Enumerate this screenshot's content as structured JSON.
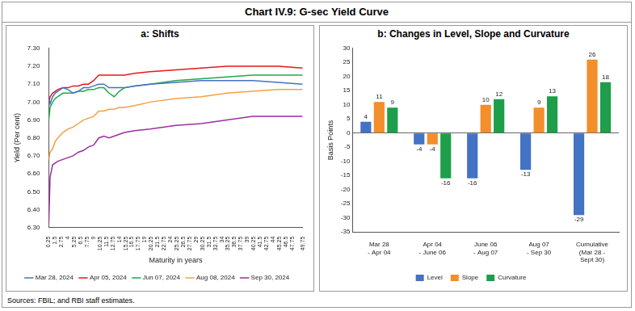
{
  "title": "Chart IV.9: G-sec Yield Curve",
  "source": "Sources: FBIL; and RBI staff estimates.",
  "chart_data": [
    {
      "type": "line",
      "title": "a: Shifts",
      "x_label": "Maturity in years",
      "y_label": "Yield (Per cent)",
      "x": [
        0.25,
        0.5,
        1,
        1.5,
        2,
        3,
        4,
        5,
        6,
        7,
        8,
        9,
        10,
        11,
        12,
        13,
        14,
        15,
        17,
        20,
        25,
        30,
        35,
        40,
        45,
        49.75
      ],
      "series": [
        {
          "name": "Mar 28, 2024",
          "color": "#4472c4",
          "values": [
            7.02,
            6.99,
            7.03,
            7.05,
            7.06,
            7.08,
            7.07,
            7.05,
            7.06,
            7.08,
            7.08,
            7.09,
            7.1,
            7.1,
            7.08,
            7.08,
            7.08,
            7.08,
            7.09,
            7.1,
            7.11,
            7.12,
            7.12,
            7.12,
            7.11,
            7.1
          ]
        },
        {
          "name": "Apr 05, 2024",
          "color": "#e31a1c",
          "values": [
            7.0,
            7.03,
            7.05,
            7.06,
            7.07,
            7.08,
            7.08,
            7.09,
            7.09,
            7.1,
            7.1,
            7.12,
            7.15,
            7.15,
            7.15,
            7.15,
            7.15,
            7.15,
            7.16,
            7.17,
            7.18,
            7.19,
            7.2,
            7.2,
            7.2,
            7.19
          ]
        },
        {
          "name": "Jun 07, 2024",
          "color": "#22a84a",
          "values": [
            6.9,
            6.97,
            7.0,
            7.02,
            7.03,
            7.05,
            7.05,
            7.05,
            7.06,
            7.06,
            7.07,
            7.07,
            7.08,
            7.08,
            7.05,
            7.03,
            7.06,
            7.08,
            7.09,
            7.1,
            7.12,
            7.13,
            7.14,
            7.15,
            7.15,
            7.15
          ]
        },
        {
          "name": "Aug 08, 2024",
          "color": "#f4a040",
          "values": [
            6.68,
            6.72,
            6.74,
            6.78,
            6.8,
            6.83,
            6.85,
            6.86,
            6.88,
            6.9,
            6.91,
            6.92,
            6.95,
            6.95,
            6.96,
            6.96,
            6.97,
            6.97,
            6.98,
            7.0,
            7.02,
            7.03,
            7.05,
            7.06,
            7.07,
            7.07
          ]
        },
        {
          "name": "Sep 30, 2024",
          "color": "#9b2f9f",
          "values": [
            6.32,
            6.58,
            6.65,
            6.66,
            6.67,
            6.68,
            6.69,
            6.7,
            6.72,
            6.73,
            6.75,
            6.76,
            6.8,
            6.81,
            6.8,
            6.81,
            6.82,
            6.83,
            6.84,
            6.85,
            6.87,
            6.88,
            6.9,
            6.92,
            6.92,
            6.92
          ]
        }
      ],
      "xlim": [
        0.25,
        49.75
      ],
      "xticks": [
        0.25,
        1.5,
        2.75,
        4,
        5.25,
        6.5,
        7.75,
        9,
        10.25,
        11.5,
        12.75,
        14,
        15.25,
        16.5,
        17.75,
        19,
        20.25,
        21.5,
        22.75,
        24,
        25.25,
        26.5,
        27.75,
        29,
        30.25,
        31.5,
        32.75,
        34,
        35.25,
        36.5,
        37.75,
        39,
        40.25,
        41.5,
        42.75,
        44,
        45.25,
        46.5,
        47.75,
        49.75
      ],
      "ylim": [
        6.3,
        7.3
      ],
      "yticks": [
        {
          "value": 6.3,
          "label": "6.30"
        },
        {
          "value": 6.4,
          "label": "6.40"
        },
        {
          "value": 6.5,
          "label": "6.50"
        },
        {
          "value": 6.6,
          "label": "6.60"
        },
        {
          "value": 6.7,
          "label": "6.70"
        },
        {
          "value": 6.8,
          "label": "6.80"
        },
        {
          "value": 6.9,
          "label": "6.90"
        },
        {
          "value": 7.0,
          "label": "7.00"
        },
        {
          "value": 7.1,
          "label": "7.10"
        },
        {
          "value": 7.2,
          "label": "7.20"
        },
        {
          "value": 7.3,
          "label": "7.30"
        }
      ],
      "grid": false,
      "legend": "bottom"
    },
    {
      "type": "bar",
      "title": "b: Changes in Level, Slope and Curvature",
      "y_label": "Basis Points",
      "categories": [
        "Mar 28\n- Apr 04",
        "Apr 04\n- June 06",
        "June 06\n- Aug 07",
        "Aug 07\n- Sep 30",
        "Cumulative\n(Mar 28 -\nSept 30)"
      ],
      "series": [
        {
          "name": "Level",
          "color": "#4472c4",
          "values": [
            4,
            -4,
            -16,
            -13,
            -29
          ]
        },
        {
          "name": "Slope",
          "color": "#f28e2b",
          "values": [
            11,
            -4,
            10,
            9,
            26
          ]
        },
        {
          "name": "Curvature",
          "color": "#1e9e4a",
          "values": [
            9,
            -16,
            12,
            13,
            18
          ]
        }
      ],
      "ylim": [
        -35,
        30
      ],
      "yticks": [
        -35,
        -30,
        -25,
        -20,
        -15,
        -10,
        -5,
        0,
        5,
        10,
        15,
        20,
        25,
        30
      ],
      "grid": false,
      "legend": "bottom",
      "data_labels": true
    }
  ]
}
